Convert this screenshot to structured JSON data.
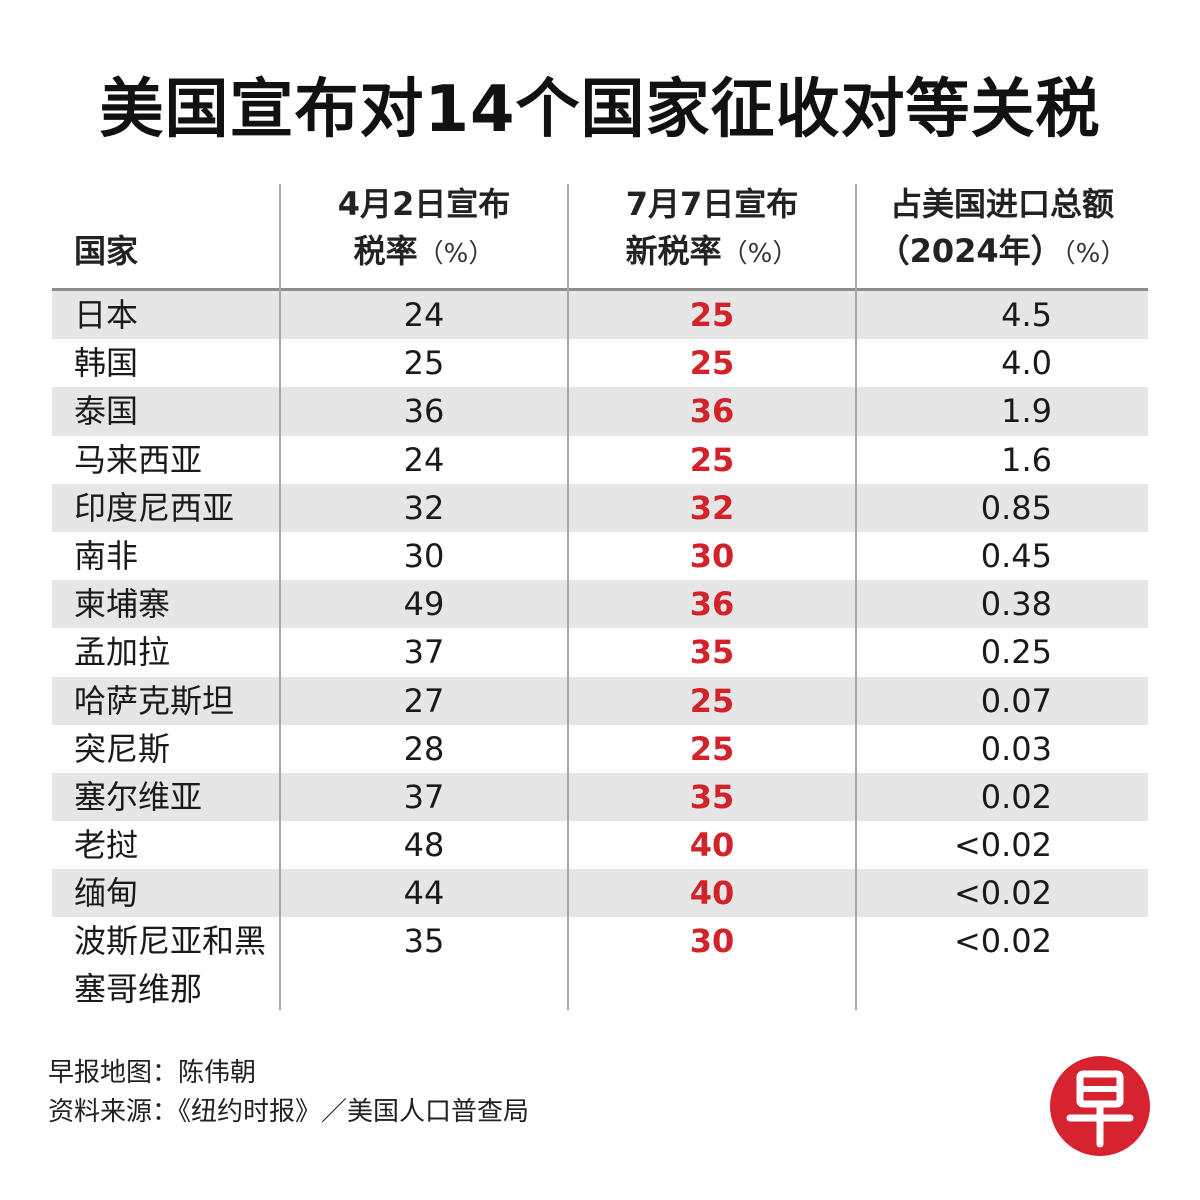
{
  "title": "美国宣布对14个国家征收对等关税",
  "headers": {
    "country": "国家",
    "april_line1": "4月2日宣布",
    "april_line2": "税率",
    "july_line1": "7月7日宣布",
    "july_line2": "新税率",
    "share_line1": "占美国进口总额",
    "share_line2": "（2024年）",
    "unit": "（%）"
  },
  "chart_data": {
    "type": "table",
    "title": "美国宣布对14个国家征收对等关税",
    "columns": [
      "国家",
      "4月2日宣布税率（%）",
      "7月7日宣布新税率（%）",
      "占美国进口总额（2024年）（%）"
    ],
    "rows": [
      {
        "country": "日本",
        "april": "24",
        "july": "25",
        "share": "4.5"
      },
      {
        "country": "韩国",
        "april": "25",
        "july": "25",
        "share": "4.0"
      },
      {
        "country": "泰国",
        "april": "36",
        "july": "36",
        "share": "1.9"
      },
      {
        "country": "马来西亚",
        "april": "24",
        "july": "25",
        "share": "1.6"
      },
      {
        "country": "印度尼西亚",
        "april": "32",
        "july": "32",
        "share": "0.85"
      },
      {
        "country": "南非",
        "april": "30",
        "july": "30",
        "share": "0.45"
      },
      {
        "country": "柬埔寨",
        "april": "49",
        "july": "36",
        "share": "0.38"
      },
      {
        "country": "孟加拉",
        "april": "37",
        "july": "35",
        "share": "0.25"
      },
      {
        "country": "哈萨克斯坦",
        "april": "27",
        "july": "25",
        "share": "0.07"
      },
      {
        "country": "突尼斯",
        "april": "28",
        "july": "25",
        "share": "0.03"
      },
      {
        "country": "塞尔维亚",
        "april": "37",
        "july": "35",
        "share": "0.02"
      },
      {
        "country": "老挝",
        "april": "48",
        "july": "40",
        "share": "<0.02"
      },
      {
        "country": "缅甸",
        "april": "44",
        "july": "40",
        "share": "<0.02"
      },
      {
        "country": "波斯尼亚和黑塞哥维那",
        "april": "35",
        "july": "30",
        "share": "<0.02"
      }
    ]
  },
  "footer": {
    "map_credit": "早报地图：陈伟朝",
    "source": "资料来源：《纽约时报》／美国人口普查局"
  },
  "logo_char": "早",
  "colors": {
    "accent_red": "#d2232a",
    "logo_red": "#d6232f",
    "row_shade": "#e6e6e6"
  }
}
